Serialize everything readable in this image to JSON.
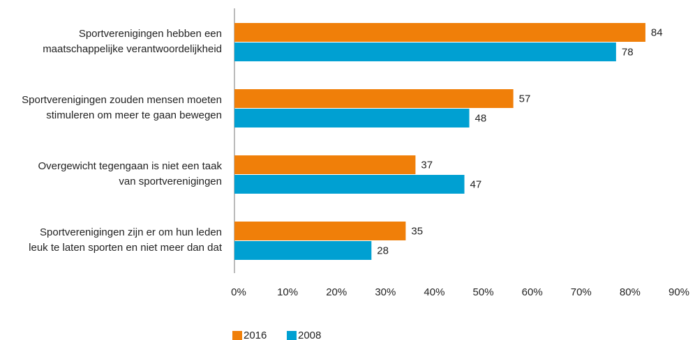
{
  "chart_data": {
    "type": "bar",
    "orientation": "horizontal",
    "categories": [
      "Sportverenigingen hebben een\nmaatschappelijke verantwoordelijkheid",
      "Sportverenigingen zouden mensen moeten\nstimuleren om meer te gaan bewegen",
      "Overgewicht tegengaan is niet een taak\nvan sportverenigingen",
      "Sportverenigingen zijn er om hun leden\nleuk te laten sporten en niet meer dan dat"
    ],
    "series": [
      {
        "name": "2016",
        "color": "#f07f09",
        "values": [
          84,
          57,
          37,
          35
        ]
      },
      {
        "name": "2008",
        "color": "#00a0d2",
        "values": [
          78,
          48,
          47,
          28
        ]
      }
    ],
    "xlim": [
      0,
      90
    ],
    "xticks": [
      {
        "value": 0,
        "label": "0%"
      },
      {
        "value": 10,
        "label": "10%"
      },
      {
        "value": 20,
        "label": "20%"
      },
      {
        "value": 30,
        "label": "30%"
      },
      {
        "value": 40,
        "label": "40%"
      },
      {
        "value": 50,
        "label": "50%"
      },
      {
        "value": 60,
        "label": "60%"
      },
      {
        "value": 70,
        "label": "70%"
      },
      {
        "value": 80,
        "label": "80%"
      },
      {
        "value": 90,
        "label": "90%"
      }
    ],
    "grid": false,
    "legend": "bottom"
  }
}
